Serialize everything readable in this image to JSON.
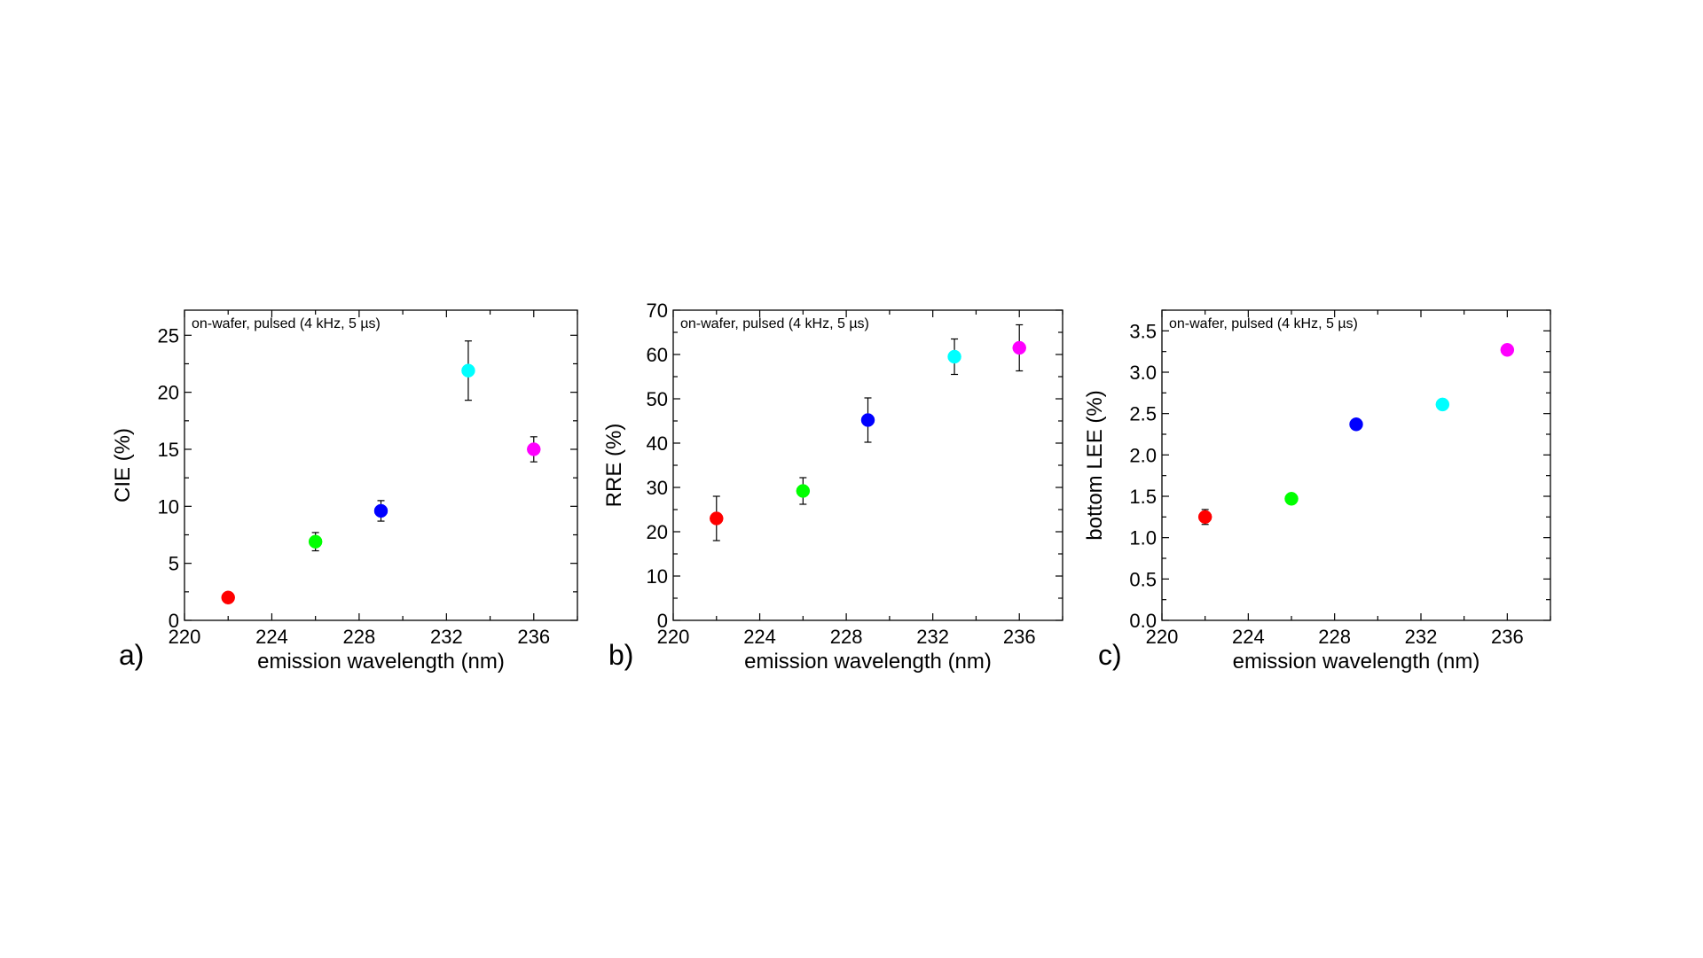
{
  "chart_data": [
    {
      "type": "scatter",
      "panel_label": "a)",
      "annotation": "on-wafer, pulsed (4 kHz, 5 µs)",
      "xlabel": "emission wavelength (nm)",
      "ylabel": "CIE (%)",
      "xlim": [
        220,
        238
      ],
      "ylim": [
        0,
        27.2
      ],
      "xticks": [
        220,
        224,
        228,
        232,
        236
      ],
      "yticks": [
        0,
        5,
        10,
        15,
        20,
        25
      ],
      "x": [
        222,
        226,
        229,
        233,
        236
      ],
      "y": [
        2.0,
        6.9,
        9.6,
        21.9,
        15.0
      ],
      "yerr": [
        0.2,
        0.8,
        0.9,
        2.6,
        1.1
      ],
      "point_colors": [
        "#ff0000",
        "#00ff00",
        "#0000ff",
        "#00ffff",
        "#ff00ff"
      ]
    },
    {
      "type": "scatter",
      "panel_label": "b)",
      "annotation": "on-wafer, pulsed (4 kHz, 5 µs)",
      "xlabel": "emission wavelength (nm)",
      "ylabel": "RRE (%)",
      "xlim": [
        220,
        238
      ],
      "ylim": [
        0,
        70
      ],
      "xticks": [
        220,
        224,
        228,
        232,
        236
      ],
      "yticks": [
        0,
        10,
        20,
        30,
        40,
        50,
        60,
        70
      ],
      "x": [
        222,
        226,
        229,
        233,
        236
      ],
      "y": [
        23.0,
        29.2,
        45.2,
        59.5,
        61.5
      ],
      "yerr": [
        5.0,
        3.0,
        5.0,
        4.0,
        5.2
      ],
      "point_colors": [
        "#ff0000",
        "#00ff00",
        "#0000ff",
        "#00ffff",
        "#ff00ff"
      ]
    },
    {
      "type": "scatter",
      "panel_label": "c)",
      "annotation": "on-wafer, pulsed (4 kHz, 5 µs)",
      "xlabel": "emission wavelength (nm)",
      "ylabel": "bottom LEE (%)",
      "xlim": [
        220,
        238
      ],
      "ylim": [
        0,
        3.75
      ],
      "xticks": [
        220,
        224,
        228,
        232,
        236
      ],
      "yticks": [
        0.0,
        0.5,
        1.0,
        1.5,
        2.0,
        2.5,
        3.0,
        3.5
      ],
      "ytick_decimals": 1,
      "x": [
        222,
        226,
        229,
        233,
        236
      ],
      "y": [
        1.25,
        1.47,
        2.37,
        2.61,
        3.27
      ],
      "yerr": [
        0.09,
        0.03,
        0.04,
        0.03,
        0.03
      ],
      "point_colors": [
        "#ff0000",
        "#00ff00",
        "#0000ff",
        "#00ffff",
        "#ff00ff"
      ]
    }
  ]
}
